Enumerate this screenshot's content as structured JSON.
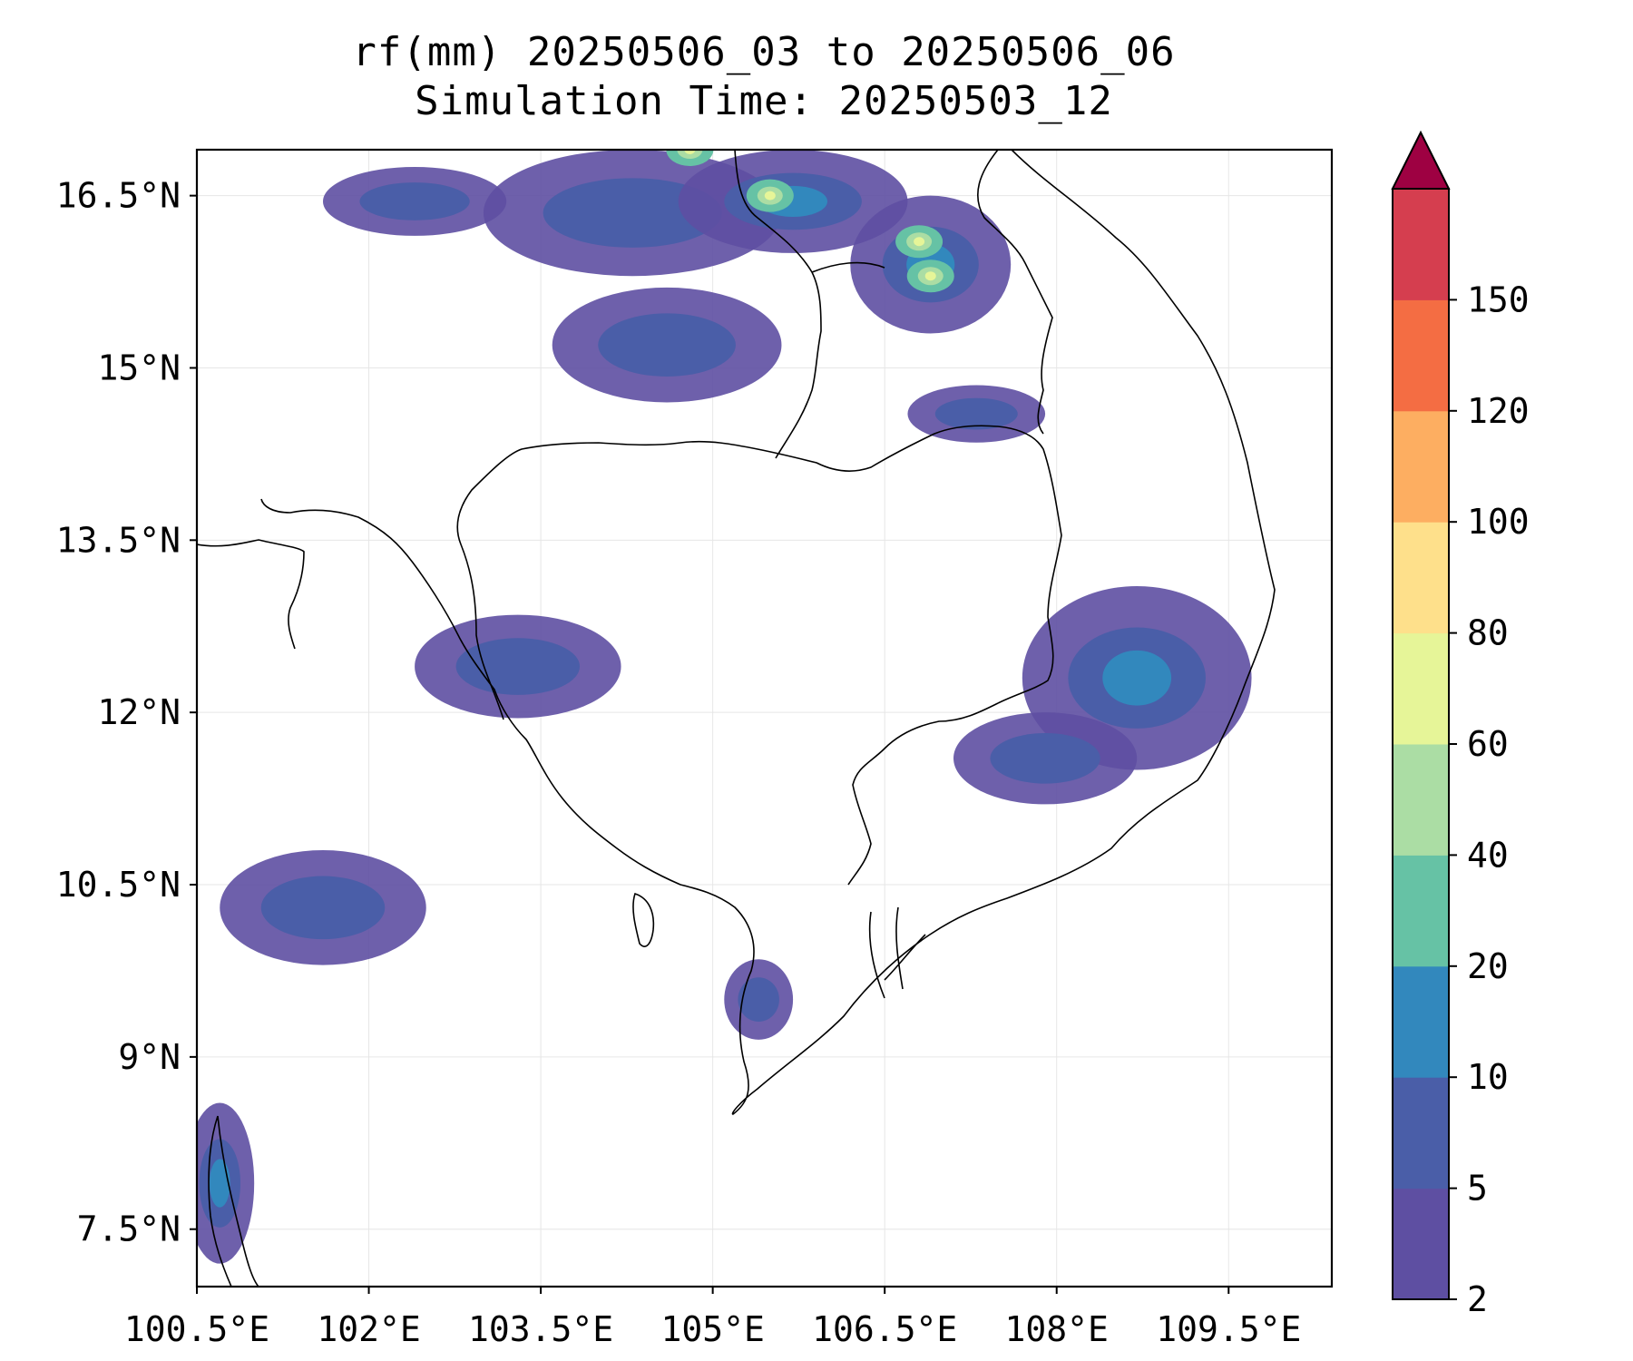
{
  "title": {
    "line1": "rf(mm) 20250506_03 to 20250506_06",
    "line2": "Simulation Time: 20250503_12"
  },
  "map": {
    "lon_ticks": [
      "100.5°E",
      "102°E",
      "103.5°E",
      "105°E",
      "106.5°E",
      "108°E",
      "109.5°E"
    ],
    "lat_ticks": [
      "16.5°N",
      "15°N",
      "13.5°N",
      "12°N",
      "10.5°N",
      "9°N",
      "7.5°N"
    ],
    "lon_values": [
      100.5,
      102.0,
      103.5,
      105.0,
      106.5,
      108.0,
      109.5
    ],
    "lat_values": [
      16.5,
      15.0,
      13.5,
      12.0,
      10.5,
      9.0,
      7.5
    ],
    "lon_range": [
      100.5,
      110.4
    ],
    "lat_range": [
      7.0,
      16.9
    ],
    "grid": true,
    "coastline_color": "#000000"
  },
  "colorbar": {
    "levels": [
      "2",
      "5",
      "10",
      "20",
      "40",
      "60",
      "80",
      "100",
      "120",
      "150"
    ],
    "colors": [
      "#5e4fa2",
      "#4a5ea8",
      "#3288bd",
      "#66c2a5",
      "#abdda4",
      "#e6f598",
      "#fee08b",
      "#fdae61",
      "#f46d43",
      "#d53e4f"
    ],
    "extend_color": "#9e0142",
    "extend": "max"
  },
  "chart_data": {
    "type": "heatmap",
    "title": "rf(mm) 20250506_03 to 20250506_06\nSimulation Time: 20250503_12",
    "xlabel": "",
    "ylabel": "",
    "xlim": [
      100.5,
      110.4
    ],
    "ylim": [
      7.0,
      16.9
    ],
    "color_levels": [
      2,
      5,
      10,
      20,
      40,
      60,
      80,
      100,
      120,
      150
    ],
    "rain_regions": [
      {
        "lon": 104.3,
        "lat": 16.35,
        "rx": 1.3,
        "ry": 0.55,
        "level": 5
      },
      {
        "lon": 105.7,
        "lat": 16.45,
        "rx": 1.0,
        "ry": 0.45,
        "level": 10
      },
      {
        "lon": 106.9,
        "lat": 15.9,
        "rx": 0.7,
        "ry": 0.6,
        "level": 10
      },
      {
        "lon": 102.4,
        "lat": 16.45,
        "rx": 0.8,
        "ry": 0.3,
        "level": 5
      },
      {
        "lon": 104.6,
        "lat": 15.2,
        "rx": 1.0,
        "ry": 0.5,
        "level": 5
      },
      {
        "lon": 107.3,
        "lat": 14.6,
        "rx": 0.6,
        "ry": 0.25,
        "level": 5
      },
      {
        "lon": 108.7,
        "lat": 12.3,
        "rx": 1.0,
        "ry": 0.8,
        "level": 10
      },
      {
        "lon": 107.9,
        "lat": 11.6,
        "rx": 0.8,
        "ry": 0.4,
        "level": 5
      },
      {
        "lon": 103.3,
        "lat": 12.4,
        "rx": 0.9,
        "ry": 0.45,
        "level": 5
      },
      {
        "lon": 101.6,
        "lat": 10.3,
        "rx": 0.9,
        "ry": 0.5,
        "level": 5
      },
      {
        "lon": 100.7,
        "lat": 7.9,
        "rx": 0.3,
        "ry": 0.7,
        "level": 10
      },
      {
        "lon": 105.4,
        "lat": 9.5,
        "rx": 0.3,
        "ry": 0.35,
        "level": 5
      }
    ],
    "peak_points": [
      {
        "lon": 104.8,
        "lat": 16.9,
        "value": 60
      },
      {
        "lon": 105.5,
        "lat": 16.5,
        "value": 60
      },
      {
        "lon": 106.8,
        "lat": 16.1,
        "value": 60
      },
      {
        "lon": 106.9,
        "lat": 15.8,
        "value": 60
      }
    ]
  }
}
